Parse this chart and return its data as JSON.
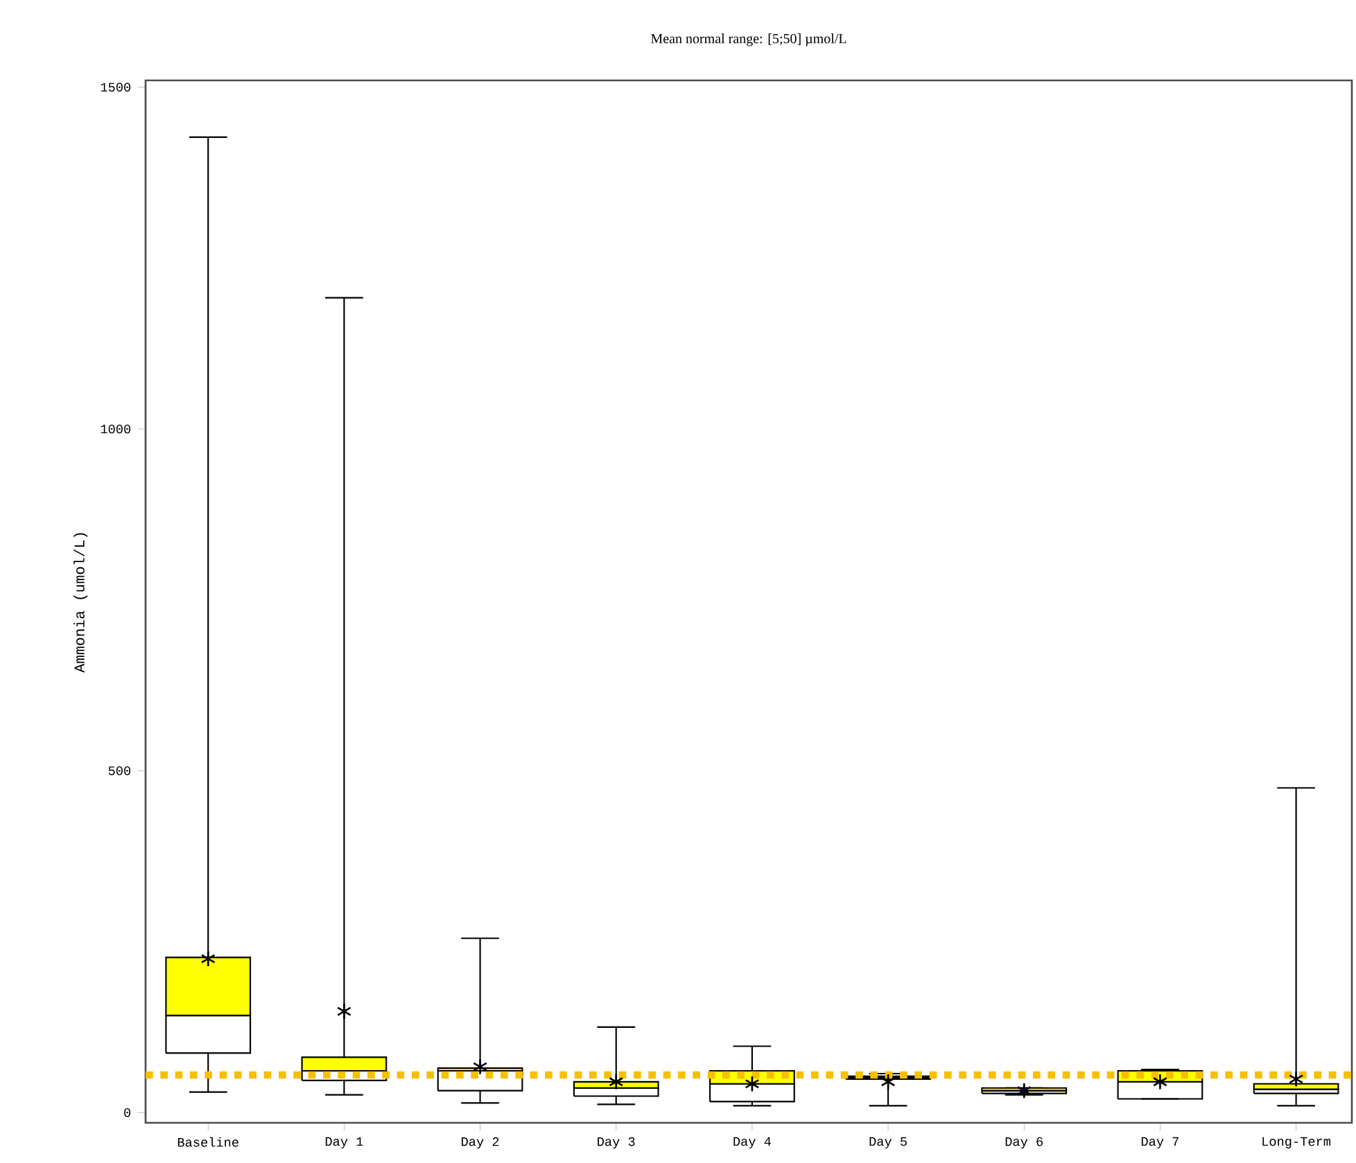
{
  "chart_data": {
    "type": "box",
    "title": "Mean normal range: [5;50] µmol/L",
    "ylabel": "Ammonia (umol/L)",
    "categories": [
      "Baseline",
      "Day 1",
      "Day 2",
      "Day 3",
      "Day 4",
      "Day 5",
      "Day 6",
      "Day 7",
      "Long-Term"
    ],
    "ylim": [
      -15,
      1510
    ],
    "yticks": [
      0,
      500,
      1000,
      1500
    ],
    "marker": "star",
    "series": [
      {
        "color": "#ffff00",
        "boxes": [
          {
            "low": 30,
            "q1": 87,
            "median": 142,
            "q3": 227,
            "high": 1427,
            "mean": 225
          },
          {
            "low": 26,
            "q1": 47,
            "median": 61,
            "q3": 81,
            "high": 1192,
            "mean": 148
          },
          {
            "low": 14,
            "q1": 32,
            "median": 61,
            "q3": 65,
            "high": 255,
            "mean": 67
          },
          {
            "low": 12,
            "q1": 24,
            "median": 36,
            "q3": 45,
            "high": 125,
            "mean": 45
          },
          {
            "low": 10,
            "q1": 16,
            "median": 42,
            "q3": 61,
            "high": 97,
            "mean": 42
          },
          {
            "low": 10,
            "q1": 49,
            "median": 51,
            "q3": 53,
            "high": 57,
            "mean": 45
          },
          {
            "low": 26,
            "q1": 28,
            "median": 32,
            "q3": 36,
            "high": 36,
            "mean": 32
          },
          {
            "low": 20,
            "q1": 20,
            "median": 45,
            "q3": 61,
            "high": 63,
            "mean": 45
          },
          {
            "low": 10,
            "q1": 28,
            "median": 34,
            "q3": 42,
            "high": 475,
            "mean": 49
          }
        ]
      }
    ],
    "ref_lines": [
      {
        "axis": "y",
        "value": 55,
        "color": "#f5c000",
        "line_style": "dotted"
      }
    ]
  }
}
